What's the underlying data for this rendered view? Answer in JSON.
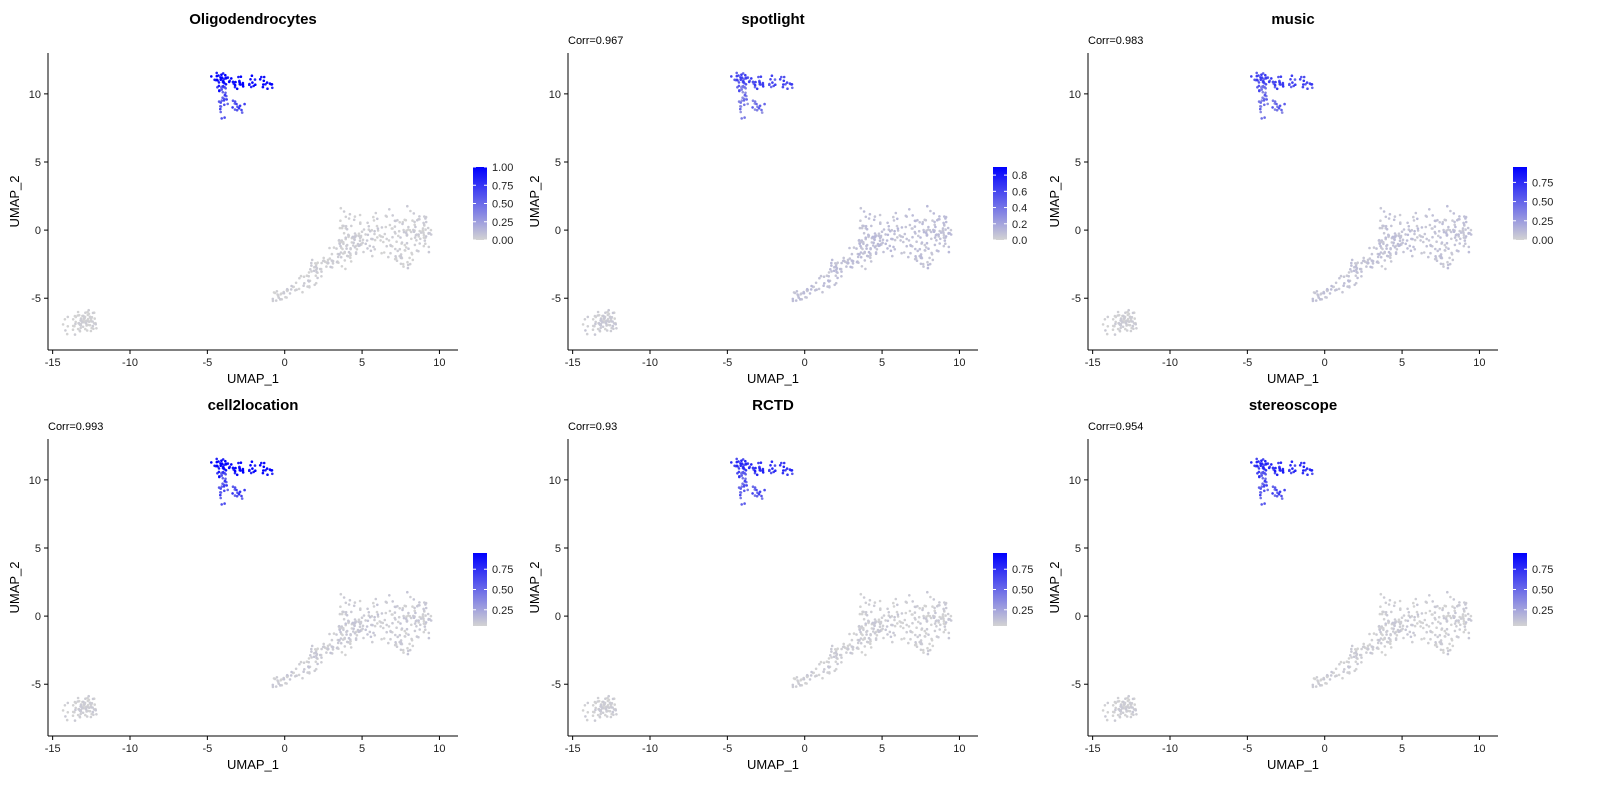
{
  "colors": {
    "low": "#d3d3d3",
    "high": "#0000ff",
    "axis": "#000000",
    "background": "#ffffff"
  },
  "chart_data": [
    {
      "type": "scatter",
      "title": "Oligodendrocytes",
      "corr_label": "",
      "xlabel": "UMAP_1",
      "ylabel": "UMAP_2",
      "xlim": [
        -15.3,
        11.2
      ],
      "ylim": [
        -8.8,
        13.0
      ],
      "xticks": [
        -15,
        -10,
        -5,
        0,
        5,
        10
      ],
      "yticks": [
        -5,
        0,
        5,
        10
      ],
      "legend": {
        "position": "right",
        "range": [
          0,
          1.0
        ],
        "ticks": [
          0.0,
          0.25,
          0.5,
          0.75,
          1.0
        ],
        "tick_labels": [
          "0.00",
          "0.25",
          "0.50",
          "0.75",
          "1.00"
        ]
      },
      "color_scale": [
        0,
        1.0
      ],
      "clusters_mean_value": {
        "oligo_top": 0.92,
        "oligo_bottom": 0.62,
        "main": 0.02,
        "isolated": 0.0
      }
    },
    {
      "type": "scatter",
      "title": "spotlight",
      "corr_label": "Corr=0.967",
      "xlabel": "UMAP_1",
      "ylabel": "UMAP_2",
      "xlim": [
        -15.3,
        11.2
      ],
      "ylim": [
        -8.8,
        13.0
      ],
      "xticks": [
        -15,
        -10,
        -5,
        0,
        5,
        10
      ],
      "yticks": [
        -5,
        0,
        5,
        10
      ],
      "legend": {
        "position": "right",
        "range": [
          0,
          0.9
        ],
        "ticks": [
          0.0,
          0.2,
          0.4,
          0.6,
          0.8
        ],
        "tick_labels": [
          "0.0",
          "0.2",
          "0.4",
          "0.6",
          "0.8"
        ]
      },
      "color_scale": [
        0,
        0.9
      ],
      "clusters_mean_value": {
        "oligo_top": 0.55,
        "oligo_bottom": 0.38,
        "main": 0.08,
        "isolated": 0.02
      }
    },
    {
      "type": "scatter",
      "title": "music",
      "corr_label": "Corr=0.983",
      "xlabel": "UMAP_1",
      "ylabel": "UMAP_2",
      "xlim": [
        -15.3,
        11.2
      ],
      "ylim": [
        -8.8,
        13.0
      ],
      "xticks": [
        -15,
        -10,
        -5,
        0,
        5,
        10
      ],
      "yticks": [
        -5,
        0,
        5,
        10
      ],
      "legend": {
        "position": "right",
        "range": [
          0,
          0.95
        ],
        "ticks": [
          0.0,
          0.25,
          0.5,
          0.75
        ],
        "tick_labels": [
          "0.00",
          "0.25",
          "0.50",
          "0.75"
        ]
      },
      "color_scale": [
        0,
        0.95
      ],
      "clusters_mean_value": {
        "oligo_top": 0.6,
        "oligo_bottom": 0.45,
        "main": 0.07,
        "isolated": 0.01
      }
    },
    {
      "type": "scatter",
      "title": "cell2location",
      "corr_label": "Corr=0.993",
      "xlabel": "UMAP_1",
      "ylabel": "UMAP_2",
      "xlim": [
        -15.3,
        11.2
      ],
      "ylim": [
        -8.8,
        13.0
      ],
      "xticks": [
        -15,
        -10,
        -5,
        0,
        5,
        10
      ],
      "yticks": [
        -5,
        0,
        5,
        10
      ],
      "legend": {
        "position": "right",
        "range": [
          0.05,
          0.95
        ],
        "ticks": [
          0.25,
          0.5,
          0.75
        ],
        "tick_labels": [
          "0.25",
          "0.50",
          "0.75"
        ]
      },
      "color_scale": [
        0.05,
        0.95
      ],
      "clusters_mean_value": {
        "oligo_top": 0.88,
        "oligo_bottom": 0.62,
        "main": 0.08,
        "isolated": 0.06
      }
    },
    {
      "type": "scatter",
      "title": "RCTD",
      "corr_label": "Corr=0.93",
      "xlabel": "UMAP_1",
      "ylabel": "UMAP_2",
      "xlim": [
        -15.3,
        11.2
      ],
      "ylim": [
        -8.8,
        13.0
      ],
      "xticks": [
        -15,
        -10,
        -5,
        0,
        5,
        10
      ],
      "yticks": [
        -5,
        0,
        5,
        10
      ],
      "legend": {
        "position": "right",
        "range": [
          0.05,
          0.95
        ],
        "ticks": [
          0.25,
          0.5,
          0.75
        ],
        "tick_labels": [
          "0.25",
          "0.50",
          "0.75"
        ]
      },
      "color_scale": [
        0.05,
        0.95
      ],
      "clusters_mean_value": {
        "oligo_top": 0.7,
        "oligo_bottom": 0.55,
        "main": 0.07,
        "isolated": 0.06
      }
    },
    {
      "type": "scatter",
      "title": "stereoscope",
      "corr_label": "Corr=0.954",
      "xlabel": "UMAP_1",
      "ylabel": "UMAP_2",
      "xlim": [
        -15.3,
        11.2
      ],
      "ylim": [
        -8.8,
        13.0
      ],
      "xticks": [
        -15,
        -10,
        -5,
        0,
        5,
        10
      ],
      "yticks": [
        -5,
        0,
        5,
        10
      ],
      "legend": {
        "position": "right",
        "range": [
          0.05,
          0.95
        ],
        "ticks": [
          0.25,
          0.5,
          0.75
        ],
        "tick_labels": [
          "0.25",
          "0.50",
          "0.75"
        ]
      },
      "color_scale": [
        0.05,
        0.95
      ],
      "clusters_mean_value": {
        "oligo_top": 0.72,
        "oligo_bottom": 0.58,
        "main": 0.07,
        "isolated": 0.06
      }
    }
  ]
}
